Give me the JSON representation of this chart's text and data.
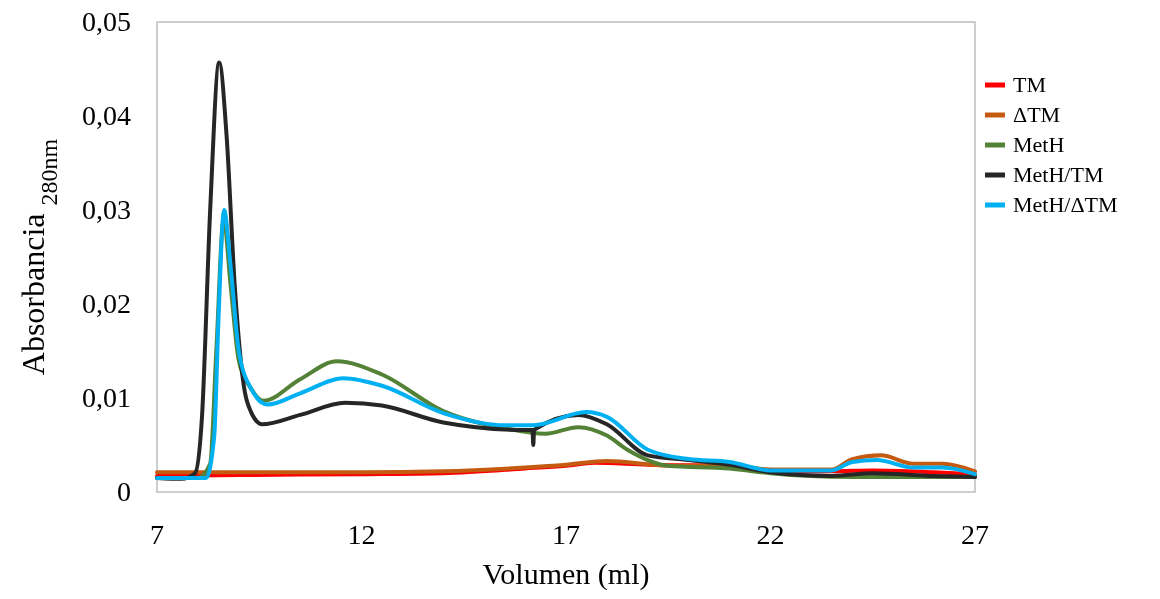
{
  "chart_data": {
    "type": "line",
    "xlabel": "Volumen (ml)",
    "ylabel": "Absorbancia $_{280nm}$",
    "xlim": [
      7,
      27
    ],
    "xticks": [
      7,
      12,
      17,
      22,
      27
    ],
    "ylim": [
      0,
      0.05
    ],
    "yticks": [
      {
        "value": 0,
        "label": "0"
      },
      {
        "value": 0.01,
        "label": "0,01"
      },
      {
        "value": 0.02,
        "label": "0,02"
      },
      {
        "value": 0.03,
        "label": "0,03"
      },
      {
        "value": 0.04,
        "label": "0,04"
      },
      {
        "value": 0.05,
        "label": "0,05"
      }
    ],
    "grid": false,
    "legend": "right",
    "marker": "none",
    "line_style": "solid",
    "series": [
      {
        "name": "TM",
        "color": "#ff0000",
        "x": [
          7,
          9,
          12,
          14,
          16,
          17,
          17.7,
          19,
          21,
          22,
          23.5,
          24.5,
          26,
          27
        ],
        "values": [
          0.0017,
          0.0018,
          0.0019,
          0.002,
          0.0025,
          0.0028,
          0.0031,
          0.0029,
          0.0028,
          0.0023,
          0.0022,
          0.0023,
          0.0021,
          0.0019
        ]
      },
      {
        "name": "ΔTM",
        "color": "#c55a11",
        "x": [
          7,
          9,
          12,
          14,
          16,
          17,
          18,
          19.5,
          21,
          22,
          23.5,
          24,
          24.7,
          25.5,
          26.2,
          27
        ],
        "values": [
          0.0021,
          0.0021,
          0.0021,
          0.0022,
          0.0026,
          0.0029,
          0.0033,
          0.0028,
          0.0028,
          0.0024,
          0.0024,
          0.0035,
          0.0039,
          0.003,
          0.003,
          0.0022
        ]
      },
      {
        "name": "MetH",
        "color": "#538135",
        "x": [
          7,
          8,
          8.3,
          8.45,
          8.63,
          8.8,
          9,
          9.3,
          9.6,
          10.5,
          11.4,
          12.5,
          14,
          15.5,
          16.5,
          17.3,
          18,
          18.5,
          19.5,
          21,
          22,
          24,
          27
        ],
        "values": [
          0.0015,
          0.0015,
          0.003,
          0.015,
          0.029,
          0.022,
          0.014,
          0.011,
          0.0097,
          0.012,
          0.0139,
          0.0125,
          0.0086,
          0.0068,
          0.0062,
          0.0069,
          0.006,
          0.0045,
          0.0028,
          0.0025,
          0.002,
          0.0016,
          0.0016
        ]
      },
      {
        "name": "MetH/TM",
        "color": "#262626",
        "x": [
          7,
          7.6,
          7.93,
          8.1,
          8.3,
          8.52,
          8.7,
          8.9,
          9.1,
          9.3,
          9.57,
          10.5,
          11.6,
          12.5,
          14,
          16,
          16.18,
          16.2,
          16.22,
          17.3,
          18,
          19,
          20,
          21,
          22,
          23.5,
          24.5,
          26,
          27
        ],
        "values": [
          0.0015,
          0.0014,
          0.002,
          0.008,
          0.03,
          0.0457,
          0.038,
          0.022,
          0.012,
          0.0085,
          0.0072,
          0.0082,
          0.0095,
          0.0092,
          0.0074,
          0.0066,
          0.0066,
          0.005,
          0.0066,
          0.0082,
          0.0072,
          0.0039,
          0.0034,
          0.0029,
          0.0021,
          0.0017,
          0.002,
          0.0017,
          0.0016
        ]
      },
      {
        "name": "MetH/ΔTM",
        "color": "#00b0f0",
        "x": [
          7,
          8.2,
          8.4,
          8.5,
          8.64,
          8.8,
          9,
          9.3,
          9.7,
          10.5,
          11.55,
          12.5,
          14,
          15.5,
          16.2,
          17.5,
          18,
          19,
          20,
          21,
          22,
          23.5,
          24,
          24.6,
          25.5,
          26.2,
          27
        ],
        "values": [
          0.0015,
          0.0015,
          0.006,
          0.018,
          0.03,
          0.024,
          0.015,
          0.011,
          0.0093,
          0.0105,
          0.0121,
          0.0113,
          0.0084,
          0.0071,
          0.0071,
          0.0085,
          0.008,
          0.0045,
          0.0035,
          0.0032,
          0.0023,
          0.0023,
          0.0032,
          0.0034,
          0.0026,
          0.0026,
          0.0019
        ]
      }
    ]
  }
}
